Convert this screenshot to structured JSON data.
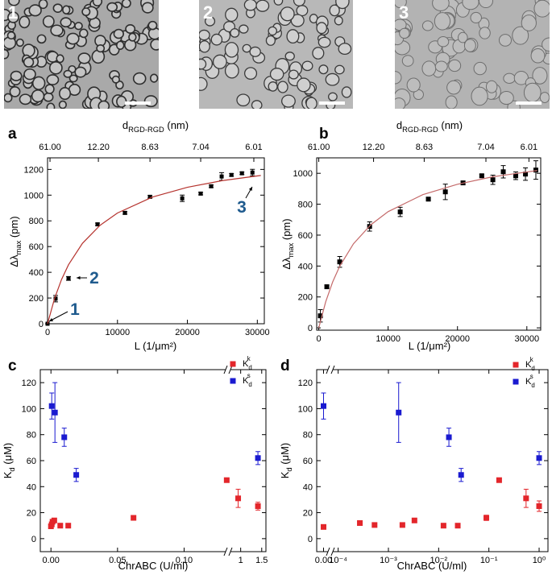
{
  "images": [
    {
      "label": "1"
    },
    {
      "label": "2"
    },
    {
      "label": "3"
    }
  ],
  "chart_data": [
    {
      "type": "scatter",
      "panel": "a",
      "x2label": [
        "d",
        "RGD-RGD",
        " (nm)"
      ],
      "xlabel": "L (1/μm²)",
      "ylabel": [
        "Δλ",
        "max",
        " (pm)"
      ],
      "xlim": [
        0,
        31000
      ],
      "xticks": [
        0,
        10000,
        20000,
        30000
      ],
      "x2lim": [
        0,
        31000
      ],
      "x2ticks": [
        {
          "value": 350,
          "label": "61.00"
        },
        {
          "value": 7270,
          "label": "12.20"
        },
        {
          "value": 14650,
          "label": "8.63"
        },
        {
          "value": 21900,
          "label": "7.04"
        },
        {
          "value": 29500,
          "label": "6.01"
        }
      ],
      "ylim": [
        0,
        1290
      ],
      "yticks": [
        0,
        200,
        400,
        600,
        800,
        1000,
        1200
      ],
      "series": [
        {
          "color": "#000000",
          "x": [
            0,
            1150,
            3000,
            7150,
            11070,
            14650,
            19260,
            21900,
            23400,
            24900,
            26300,
            27800,
            29300
          ],
          "values": [
            0,
            195,
            352,
            773,
            862,
            987,
            975,
            1012,
            1069,
            1145,
            1157,
            1170,
            1176
          ],
          "errors": [
            0,
            25,
            15,
            10,
            10,
            10,
            25,
            10,
            10,
            30,
            10,
            10,
            25
          ]
        },
        {
          "color": "#b5332e",
          "mode": "line",
          "x": [
            0,
            1000,
            2000,
            3000,
            5000,
            7500,
            10000,
            15000,
            20000,
            25000,
            30500
          ],
          "values": [
            0,
            196,
            344,
            459,
            626,
            765,
            861,
            985,
            1061,
            1113,
            1153
          ]
        }
      ],
      "annotations": [
        "1",
        "2",
        "3"
      ]
    },
    {
      "type": "scatter",
      "panel": "b",
      "x2label": [
        "d",
        "RGD-RGD",
        " (nm)"
      ],
      "xlabel": "L (1/μm²)",
      "ylabel": [
        "Δλ",
        "max",
        " (pm)"
      ],
      "xlim": [
        -300,
        32000
      ],
      "xticks": [
        0,
        10000,
        20000,
        30000
      ],
      "x2lim": [
        -300,
        32000
      ],
      "x2ticks": [
        {
          "value": 0,
          "label": "61.00"
        },
        {
          "value": 7900,
          "label": "12.20"
        },
        {
          "value": 15200,
          "label": "8.63"
        },
        {
          "value": 24100,
          "label": "7.04"
        },
        {
          "value": 30300,
          "label": "6.01"
        }
      ],
      "ylim": [
        -15,
        1100
      ],
      "yticks": [
        0,
        200,
        400,
        600,
        800,
        1000
      ],
      "series": [
        {
          "color": "#000000",
          "x": [
            230,
            1160,
            3020,
            7330,
            11740,
            15800,
            18250,
            20800,
            23500,
            25100,
            26600,
            28400,
            29800,
            31300
          ],
          "values": [
            78,
            266,
            427,
            656,
            750,
            833,
            880,
            938,
            984,
            958,
            1010,
            984,
            995,
            1021
          ],
          "errors": [
            40,
            10,
            35,
            30,
            30,
            10,
            50,
            10,
            10,
            30,
            40,
            25,
            40,
            60
          ]
        },
        {
          "color": "#c46a6a",
          "mode": "line",
          "x": [
            0,
            1000,
            2000,
            3000,
            5000,
            7500,
            10000,
            15000,
            20000,
            25000,
            31500
          ],
          "values": [
            0,
            169,
            297,
            397,
            544,
            667,
            752,
            862,
            929,
            977,
            1018
          ]
        }
      ]
    },
    {
      "type": "scatter",
      "panel": "c",
      "xlabel": "ChrABC (U/ml)",
      "ylabel": [
        "K",
        "d",
        " (μM)"
      ],
      "xsegments": [
        {
          "xlim": [
            -0.008,
            0.133
          ],
          "xticks": [
            {
              "value": 0,
              "label": "0.00"
            },
            {
              "value": 0.05,
              "label": "0.05"
            },
            {
              "value": 0.1,
              "label": "0.10"
            }
          ]
        },
        {
          "xlim": [
            0.7,
            1.6
          ],
          "xticks": [
            1,
            1.5
          ]
        }
      ],
      "ylim": [
        -10,
        130
      ],
      "yticks": [
        0,
        20,
        40,
        60,
        80,
        100,
        120
      ],
      "series": [
        {
          "name": [
            "K",
            "d",
            "k"
          ],
          "color": "#e3262b",
          "x": [
            0,
            0.0006,
            0.0012,
            0.0025,
            0.007,
            0.013,
            0.062,
            0.132,
            0.94,
            1.41
          ],
          "values": [
            9.5,
            11,
            13,
            14,
            10,
            10,
            16,
            45,
            31,
            25
          ],
          "errors": [
            0,
            0,
            0,
            0,
            0,
            0,
            1.5,
            0,
            7,
            3
          ]
        },
        {
          "name": [
            "K",
            "d",
            "s"
          ],
          "color": "#1a1ad0",
          "x": [
            0.0006,
            0.003,
            0.01,
            0.019,
            1.41
          ],
          "values": [
            102,
            97,
            78,
            49,
            62
          ],
          "errors": [
            10,
            23,
            7,
            5,
            5
          ]
        }
      ]
    },
    {
      "type": "scatter",
      "panel": "d",
      "xlabel": "ChrABC (U/ml)",
      "ylabel": [
        "K",
        "d",
        " (μM)"
      ],
      "xsegments": [
        {
          "xlim": [
            -1e-05,
            1e-05
          ],
          "xticks": [
            {
              "value": 0,
              "label": "0.00"
            }
          ]
        },
        {
          "log": true,
          "xlim": [
            7e-05,
            1.5
          ],
          "xticks": [
            {
              "value": 0.0001,
              "label": "10⁻⁴"
            },
            {
              "value": 0.001,
              "label": "10⁻³"
            },
            {
              "value": 0.01,
              "label": "10⁻²"
            },
            {
              "value": 0.1,
              "label": "10⁻¹"
            },
            {
              "value": 1,
              "label": "10⁰"
            }
          ]
        }
      ],
      "ylim": [
        -10,
        130
      ],
      "yticks": [
        0,
        20,
        40,
        60,
        80,
        100,
        120
      ],
      "series": [
        {
          "name": [
            "K",
            "d",
            "k"
          ],
          "color": "#e3262b",
          "x": [
            0,
            0.00027,
            0.00053,
            0.0019,
            0.0033,
            0.0125,
            0.024,
            0.089,
            0.16,
            0.55,
            1.0
          ],
          "values": [
            9,
            12,
            10.5,
            10.5,
            14,
            10,
            10,
            16,
            45,
            31,
            25
          ],
          "errors": [
            0,
            0,
            0,
            0,
            0,
            0,
            0,
            2,
            0,
            7,
            4
          ]
        },
        {
          "name": [
            "K",
            "d",
            "s"
          ],
          "color": "#1a1ad0",
          "x": [
            0,
            0.0016,
            0.016,
            0.028,
            1.0
          ],
          "values": [
            102,
            97,
            78,
            49,
            62
          ],
          "errors": [
            10,
            23,
            7,
            5,
            5
          ]
        }
      ]
    }
  ]
}
